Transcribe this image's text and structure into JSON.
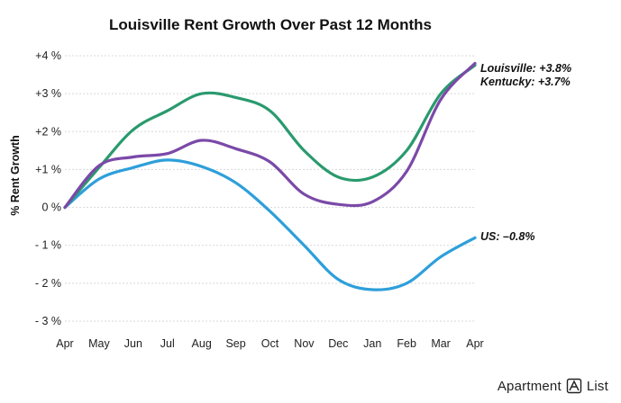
{
  "chart_data": {
    "type": "line",
    "title": "Louisville Rent Growth Over Past 12 Months",
    "xlabel": "",
    "ylabel": "% Rent Growth",
    "categories": [
      "Apr",
      "May",
      "Jun",
      "Jul",
      "Aug",
      "Sep",
      "Oct",
      "Nov",
      "Dec",
      "Jan",
      "Feb",
      "Mar",
      "Apr"
    ],
    "ylim": [
      -3,
      4
    ],
    "yticks": [
      {
        "value": 4,
        "label": "+4 %"
      },
      {
        "value": 3,
        "label": "+3 %"
      },
      {
        "value": 2,
        "label": "+2 %"
      },
      {
        "value": 1,
        "label": "+1 %"
      },
      {
        "value": 0,
        "label": "0 %"
      },
      {
        "value": -1,
        "label": "- 1 %"
      },
      {
        "value": -2,
        "label": "- 2 %"
      },
      {
        "value": -3,
        "label": "- 3 %"
      }
    ],
    "grid": true,
    "series": [
      {
        "name": "Kentucky",
        "color": "#2a9a6e",
        "label": "Kentucky: +3.7%",
        "values": [
          0.0,
          1.05,
          2.05,
          2.55,
          3.0,
          2.9,
          2.55,
          1.5,
          0.8,
          0.8,
          1.5,
          3.0,
          3.75
        ]
      },
      {
        "name": "Louisville",
        "color": "#7b49a8",
        "label": "Louisville: +3.8%",
        "values": [
          0.0,
          1.1,
          1.33,
          1.42,
          1.77,
          1.55,
          1.2,
          0.35,
          0.08,
          0.15,
          0.95,
          2.85,
          3.8
        ]
      },
      {
        "name": "US",
        "color": "#2e9fda",
        "label": "US: –0.8%",
        "values": [
          0.0,
          0.75,
          1.05,
          1.25,
          1.08,
          0.65,
          -0.1,
          -1.0,
          -1.9,
          -2.17,
          -2.0,
          -1.3,
          -0.8
        ]
      }
    ]
  },
  "branding": {
    "left": "Apartment",
    "right": "List",
    "logo_icon": "apartment-list-logo-icon"
  }
}
